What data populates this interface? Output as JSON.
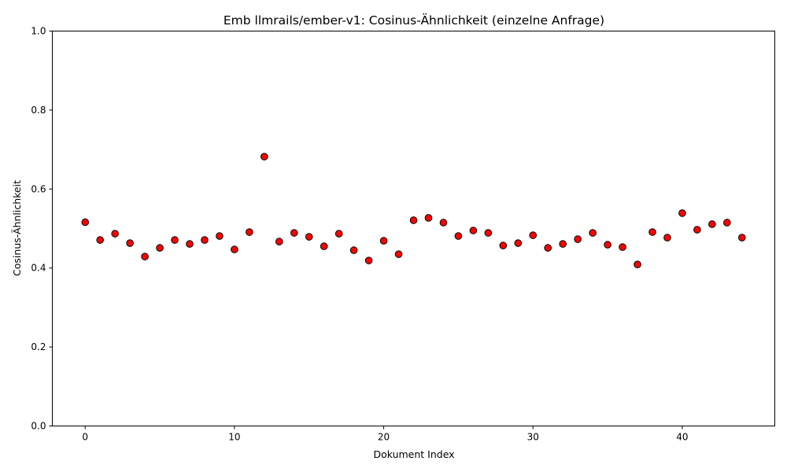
{
  "chart_data": {
    "type": "scatter",
    "title": "Emb llmrails/ember-v1: Cosinus-Ähnlichkeit (einzelne Anfrage)",
    "xlabel": "Dokument Index",
    "ylabel": "Cosinus-Ähnlichkeit",
    "xlim": [
      -2.2,
      46.2
    ],
    "ylim": [
      0.0,
      1.0
    ],
    "xticks": [
      0,
      10,
      20,
      30,
      40
    ],
    "yticks": [
      0.0,
      0.2,
      0.4,
      0.6,
      0.8,
      1.0
    ],
    "xtick_labels": [
      "0",
      "10",
      "20",
      "30",
      "40"
    ],
    "ytick_labels": [
      "0.0",
      "0.2",
      "0.4",
      "0.6",
      "0.8",
      "1.0"
    ],
    "grid": false,
    "colors": {
      "marker_fill": "#ff0000",
      "marker_edge": "#000000"
    },
    "x": [
      0,
      1,
      2,
      3,
      4,
      5,
      6,
      7,
      8,
      9,
      10,
      11,
      12,
      13,
      14,
      15,
      16,
      17,
      18,
      19,
      20,
      21,
      22,
      23,
      24,
      25,
      26,
      27,
      28,
      29,
      30,
      31,
      32,
      33,
      34,
      35,
      36,
      37,
      38,
      39,
      40,
      41,
      42,
      43,
      44
    ],
    "y": [
      0.516,
      0.471,
      0.487,
      0.463,
      0.429,
      0.451,
      0.471,
      0.461,
      0.471,
      0.481,
      0.447,
      0.491,
      0.682,
      0.467,
      0.489,
      0.479,
      0.455,
      0.487,
      0.445,
      0.419,
      0.469,
      0.435,
      0.521,
      0.527,
      0.515,
      0.481,
      0.495,
      0.489,
      0.457,
      0.463,
      0.483,
      0.451,
      0.461,
      0.473,
      0.489,
      0.459,
      0.453,
      0.409,
      0.491,
      0.477,
      0.539,
      0.497,
      0.511,
      0.515,
      0.477
    ]
  }
}
